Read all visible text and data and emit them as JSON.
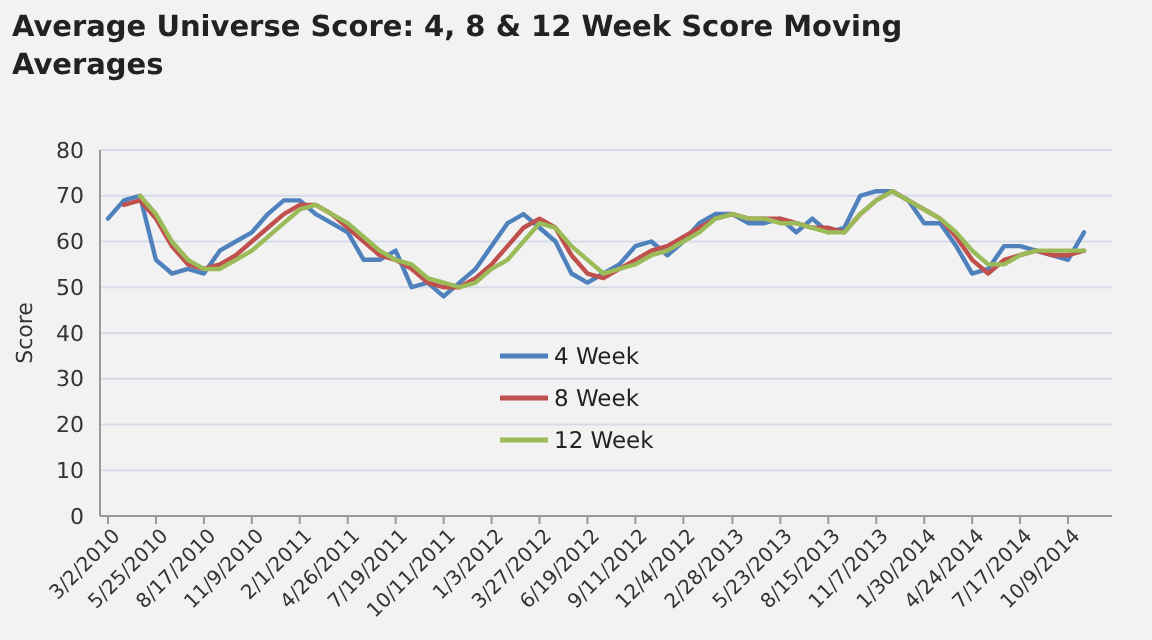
{
  "chart_data": {
    "type": "line",
    "title": "Average Universe Score:  4, 8 & 12 Week Score Moving Averages",
    "ylabel": "Score",
    "xlim": [
      "2010-02-16",
      "2014-12-25"
    ],
    "ylim": [
      0,
      80
    ],
    "yticks": [
      0,
      10,
      20,
      30,
      40,
      50,
      60,
      70,
      80
    ],
    "xticks": [
      {
        "value": "2010-03-02",
        "label": "3/2/2010"
      },
      {
        "value": "2010-05-25",
        "label": "5/25/2010"
      },
      {
        "value": "2010-08-17",
        "label": "8/17/2010"
      },
      {
        "value": "2010-11-09",
        "label": "11/9/2010"
      },
      {
        "value": "2011-02-01",
        "label": "2/1/2011"
      },
      {
        "value": "2011-04-26",
        "label": "4/26/2011"
      },
      {
        "value": "2011-07-19",
        "label": "7/19/2011"
      },
      {
        "value": "2011-10-11",
        "label": "10/11/2011"
      },
      {
        "value": "2012-01-03",
        "label": "1/3/2012"
      },
      {
        "value": "2012-03-27",
        "label": "3/27/2012"
      },
      {
        "value": "2012-06-19",
        "label": "6/19/2012"
      },
      {
        "value": "2012-09-11",
        "label": "9/11/2012"
      },
      {
        "value": "2012-12-04",
        "label": "12/4/2012"
      },
      {
        "value": "2013-02-28",
        "label": "2/28/2013"
      },
      {
        "value": "2013-05-23",
        "label": "5/23/2013"
      },
      {
        "value": "2013-08-15",
        "label": "8/15/2013"
      },
      {
        "value": "2013-11-07",
        "label": "11/7/2013"
      },
      {
        "value": "2014-01-30",
        "label": "1/30/2014"
      },
      {
        "value": "2014-04-24",
        "label": "4/24/2014"
      },
      {
        "value": "2014-07-17",
        "label": "7/17/2014"
      },
      {
        "value": "2014-10-09",
        "label": "10/9/2014"
      }
    ],
    "grid": "y",
    "legend": "center",
    "marker": "none",
    "line_style": "solid",
    "x": [
      "2010-03-02",
      "2010-03-30",
      "2010-04-27",
      "2010-05-25",
      "2010-06-22",
      "2010-07-20",
      "2010-08-17",
      "2010-09-14",
      "2010-10-12",
      "2010-11-09",
      "2010-12-07",
      "2011-01-04",
      "2011-02-01",
      "2011-03-01",
      "2011-03-29",
      "2011-04-26",
      "2011-05-24",
      "2011-06-21",
      "2011-07-19",
      "2011-08-16",
      "2011-09-13",
      "2011-10-11",
      "2011-11-08",
      "2011-12-06",
      "2012-01-03",
      "2012-01-31",
      "2012-02-28",
      "2012-03-27",
      "2012-04-24",
      "2012-05-22",
      "2012-06-19",
      "2012-07-17",
      "2012-08-14",
      "2012-09-11",
      "2012-10-09",
      "2012-11-06",
      "2012-12-04",
      "2013-01-01",
      "2013-01-29",
      "2013-02-28",
      "2013-03-28",
      "2013-04-25",
      "2013-05-23",
      "2013-06-20",
      "2013-07-18",
      "2013-08-15",
      "2013-09-12",
      "2013-10-10",
      "2013-11-07",
      "2013-12-05",
      "2014-01-02",
      "2014-01-30",
      "2014-02-27",
      "2014-03-27",
      "2014-04-24",
      "2014-05-22",
      "2014-06-19",
      "2014-07-17",
      "2014-08-14",
      "2014-09-11",
      "2014-10-09",
      "2014-11-06"
    ],
    "series": [
      {
        "name": "4 Week",
        "color": "#4f81bd",
        "values": [
          65,
          69,
          70,
          56,
          53,
          54,
          53,
          58,
          60,
          62,
          66,
          69,
          69,
          66,
          64,
          62,
          56,
          56,
          58,
          50,
          51,
          48,
          51,
          54,
          59,
          64,
          66,
          63,
          60,
          53,
          51,
          53,
          55,
          59,
          60,
          57,
          60,
          64,
          66,
          66,
          64,
          64,
          65,
          62,
          65,
          62,
          63,
          70,
          71,
          71,
          69,
          64,
          64,
          59,
          53,
          54,
          59,
          59,
          58,
          57,
          56,
          62
        ]
      },
      {
        "name": "8 Week",
        "color": "#c0504d",
        "values": [
          null,
          68,
          69,
          65,
          59,
          55,
          54,
          55,
          57,
          60,
          63,
          66,
          68,
          68,
          66,
          63,
          60,
          57,
          56,
          54,
          51,
          50,
          50,
          52,
          55,
          59,
          63,
          65,
          63,
          57,
          53,
          52,
          54,
          56,
          58,
          59,
          61,
          63,
          65,
          66,
          65,
          65,
          65,
          64,
          63,
          63,
          62,
          66,
          69,
          71,
          69,
          67,
          65,
          61,
          56,
          53,
          56,
          57,
          58,
          57,
          57,
          58
        ]
      },
      {
        "name": "12 Week",
        "color": "#9bbb59",
        "values": [
          null,
          null,
          70,
          66,
          60,
          56,
          54,
          54,
          56,
          58,
          61,
          64,
          67,
          68,
          66,
          64,
          61,
          58,
          56,
          55,
          52,
          51,
          50,
          51,
          54,
          56,
          60,
          64,
          63,
          59,
          56,
          53,
          54,
          55,
          57,
          58,
          60,
          62,
          65,
          66,
          65,
          65,
          64,
          64,
          63,
          62,
          62,
          66,
          69,
          71,
          69,
          67,
          65,
          62,
          58,
          55,
          55,
          57,
          58,
          58,
          58,
          58
        ]
      }
    ]
  }
}
